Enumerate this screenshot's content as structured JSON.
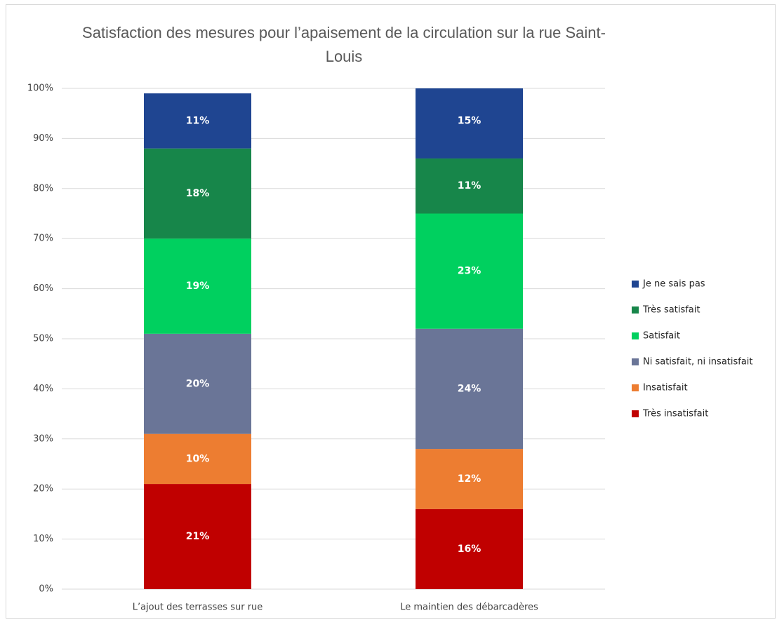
{
  "chart_data": {
    "type": "stacked_bar",
    "title": "Satisfaction des mesures pour l’apaisement de la circulation sur la rue Saint-Louis",
    "categories": [
      "L’ajout des terrasses sur rue",
      "Le maintien des débarcadères"
    ],
    "series": [
      {
        "name": "Très insatisfait",
        "color": "#c00000",
        "values": [
          21,
          16
        ],
        "value_labels": [
          "21%",
          "16%"
        ]
      },
      {
        "name": "Insatisfait",
        "color": "#ed7d31",
        "values": [
          10,
          12
        ],
        "value_labels": [
          "10%",
          "12%"
        ]
      },
      {
        "name": "Ni satisfait, ni insatisfait",
        "color": "#6a7597",
        "values": [
          20,
          24
        ],
        "value_labels": [
          "20%",
          "24%"
        ]
      },
      {
        "name": "Satisfait",
        "color": "#00d05f",
        "values": [
          19,
          23
        ],
        "value_labels": [
          "19%",
          "23%"
        ]
      },
      {
        "name": "Très satisfait",
        "color": "#17864a",
        "values": [
          18,
          11
        ],
        "value_labels": [
          "18%",
          "11%"
        ]
      },
      {
        "name": "Je ne sais pas",
        "color": "#1f4591",
        "values": [
          11,
          15
        ],
        "value_labels": [
          "11%",
          "15%"
        ]
      }
    ],
    "ylim": [
      0,
      100
    ],
    "yticks": [
      {
        "value": 0,
        "label": "0%"
      },
      {
        "value": 10,
        "label": "10%"
      },
      {
        "value": 20,
        "label": "20%"
      },
      {
        "value": 30,
        "label": "30%"
      },
      {
        "value": 40,
        "label": "40%"
      },
      {
        "value": 50,
        "label": "50%"
      },
      {
        "value": 60,
        "label": "60%"
      },
      {
        "value": 70,
        "label": "70%"
      },
      {
        "value": 80,
        "label": "80%"
      },
      {
        "value": 90,
        "label": "90%"
      },
      {
        "value": 100,
        "label": "100%"
      }
    ],
    "grid": true,
    "legend": "right"
  }
}
